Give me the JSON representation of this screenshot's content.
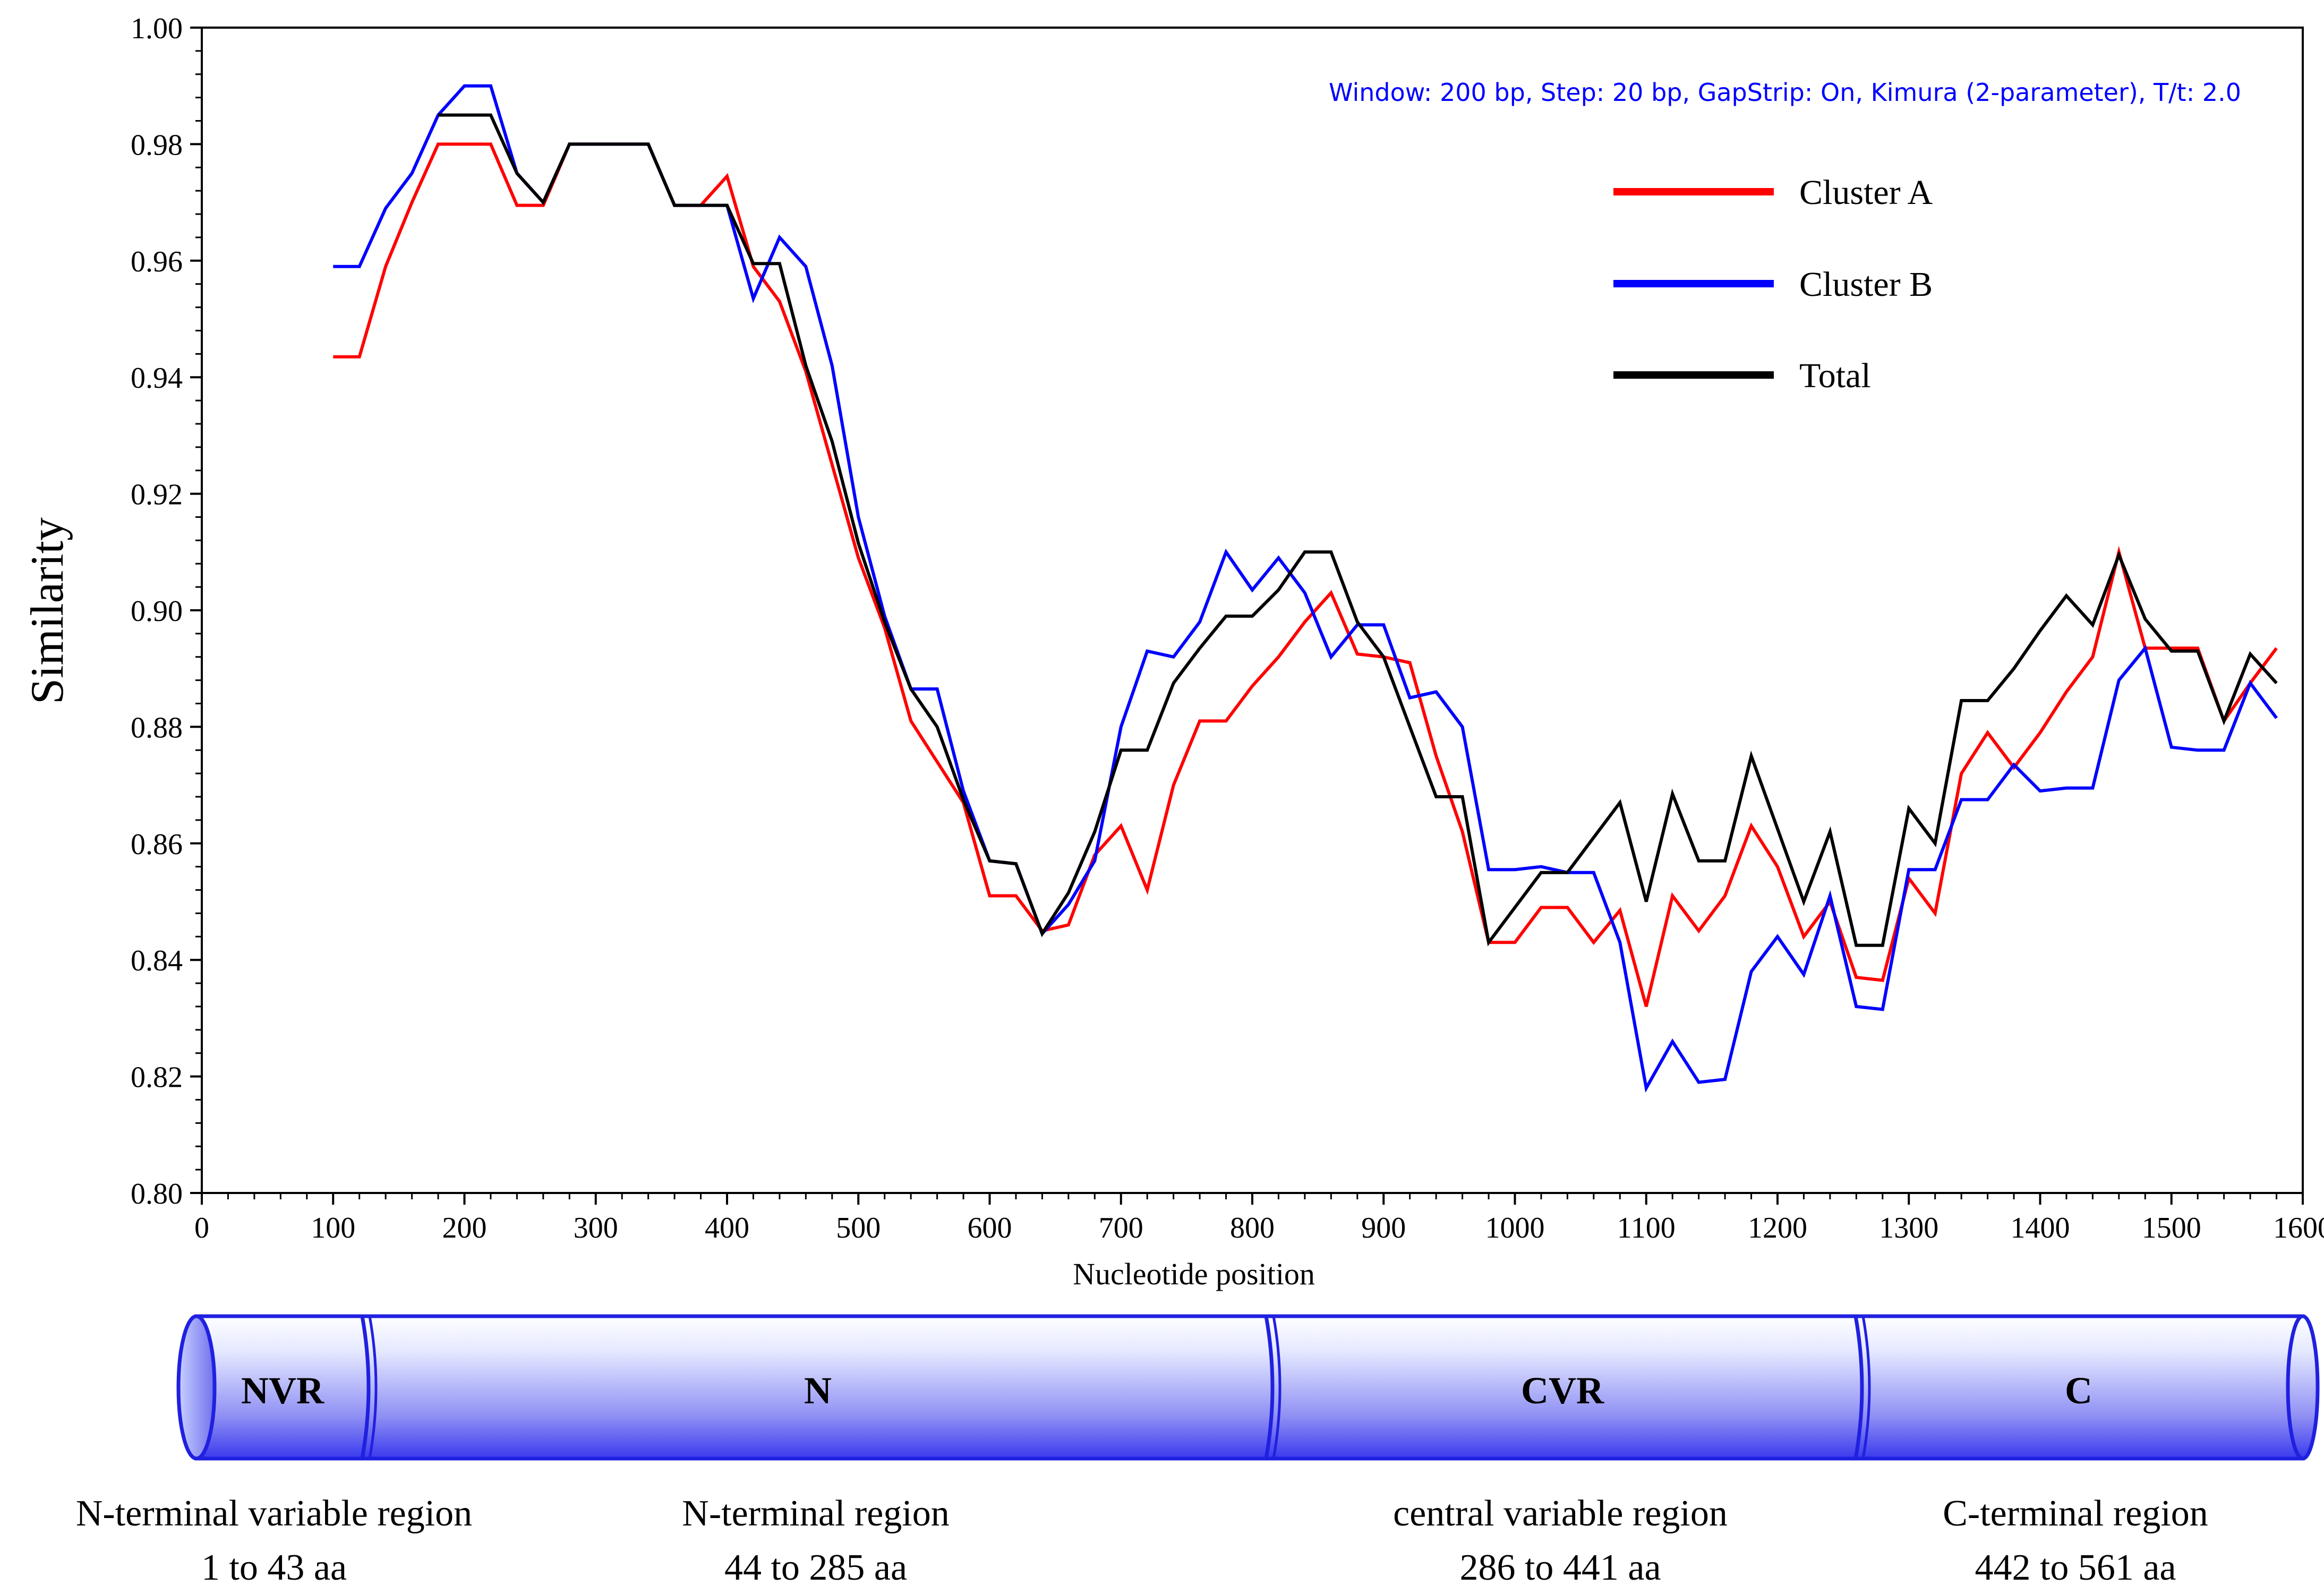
{
  "chart_data": {
    "type": "line",
    "annotation": "Window: 200 bp, Step: 20 bp, GapStrip: On, Kimura (2-parameter), T/t: 2.0",
    "xlabel": "Nucleotide position",
    "ylabel": "Similarity",
    "xlim": [
      0,
      1600
    ],
    "ylim": [
      0.8,
      1.0
    ],
    "x_ticks": [
      0,
      100,
      200,
      300,
      400,
      500,
      600,
      700,
      800,
      900,
      1000,
      1100,
      1200,
      1300,
      1400,
      1500,
      1600
    ],
    "y_ticks": [
      "0.80",
      "0.82",
      "0.84",
      "0.86",
      "0.88",
      "0.90",
      "0.92",
      "0.94",
      "0.96",
      "0.98",
      "1.00"
    ],
    "legend_position": "top-right",
    "series": [
      {
        "name": "Cluster A",
        "color": "#ff0000",
        "points": [
          [
            100,
            0.9435
          ],
          [
            120,
            0.9435
          ],
          [
            140,
            0.959
          ],
          [
            160,
            0.97
          ],
          [
            180,
            0.98
          ],
          [
            200,
            0.98
          ],
          [
            220,
            0.98
          ],
          [
            240,
            0.9695
          ],
          [
            260,
            0.9695
          ],
          [
            280,
            0.98
          ],
          [
            300,
            0.98
          ],
          [
            320,
            0.98
          ],
          [
            340,
            0.98
          ],
          [
            360,
            0.9695
          ],
          [
            380,
            0.9695
          ],
          [
            400,
            0.9745
          ],
          [
            420,
            0.959
          ],
          [
            440,
            0.953
          ],
          [
            460,
            0.941
          ],
          [
            480,
            0.925
          ],
          [
            500,
            0.909
          ],
          [
            520,
            0.897
          ],
          [
            540,
            0.881
          ],
          [
            560,
            0.874
          ],
          [
            580,
            0.867
          ],
          [
            600,
            0.851
          ],
          [
            620,
            0.851
          ],
          [
            640,
            0.845
          ],
          [
            660,
            0.846
          ],
          [
            680,
            0.858
          ],
          [
            700,
            0.863
          ],
          [
            720,
            0.852
          ],
          [
            740,
            0.87
          ],
          [
            760,
            0.881
          ],
          [
            780,
            0.881
          ],
          [
            800,
            0.887
          ],
          [
            820,
            0.892
          ],
          [
            840,
            0.898
          ],
          [
            860,
            0.903
          ],
          [
            880,
            0.8925
          ],
          [
            900,
            0.892
          ],
          [
            920,
            0.891
          ],
          [
            940,
            0.875
          ],
          [
            960,
            0.862
          ],
          [
            980,
            0.843
          ],
          [
            1000,
            0.843
          ],
          [
            1020,
            0.849
          ],
          [
            1040,
            0.849
          ],
          [
            1060,
            0.843
          ],
          [
            1080,
            0.8485
          ],
          [
            1100,
            0.832
          ],
          [
            1120,
            0.851
          ],
          [
            1140,
            0.845
          ],
          [
            1160,
            0.851
          ],
          [
            1180,
            0.863
          ],
          [
            1200,
            0.856
          ],
          [
            1220,
            0.844
          ],
          [
            1240,
            0.85
          ],
          [
            1260,
            0.837
          ],
          [
            1280,
            0.8365
          ],
          [
            1300,
            0.854
          ],
          [
            1320,
            0.848
          ],
          [
            1340,
            0.872
          ],
          [
            1360,
            0.879
          ],
          [
            1380,
            0.873
          ],
          [
            1400,
            0.879
          ],
          [
            1420,
            0.886
          ],
          [
            1440,
            0.892
          ],
          [
            1460,
            0.91
          ],
          [
            1480,
            0.8935
          ],
          [
            1500,
            0.8935
          ],
          [
            1520,
            0.8935
          ],
          [
            1540,
            0.881
          ],
          [
            1560,
            0.8875
          ],
          [
            1580,
            0.8935
          ]
        ]
      },
      {
        "name": "Cluster B",
        "color": "#0000ff",
        "points": [
          [
            100,
            0.959
          ],
          [
            120,
            0.959
          ],
          [
            140,
            0.969
          ],
          [
            160,
            0.975
          ],
          [
            180,
            0.985
          ],
          [
            200,
            0.99
          ],
          [
            220,
            0.99
          ],
          [
            240,
            0.975
          ],
          [
            260,
            0.97
          ],
          [
            280,
            0.98
          ],
          [
            300,
            0.98
          ],
          [
            320,
            0.98
          ],
          [
            340,
            0.98
          ],
          [
            360,
            0.9695
          ],
          [
            380,
            0.9695
          ],
          [
            400,
            0.9695
          ],
          [
            420,
            0.9535
          ],
          [
            440,
            0.964
          ],
          [
            460,
            0.959
          ],
          [
            480,
            0.942
          ],
          [
            500,
            0.916
          ],
          [
            520,
            0.899
          ],
          [
            540,
            0.8865
          ],
          [
            560,
            0.8865
          ],
          [
            580,
            0.869
          ],
          [
            600,
            0.857
          ],
          [
            620,
            0.8565
          ],
          [
            640,
            0.8445
          ],
          [
            660,
            0.8495
          ],
          [
            680,
            0.857
          ],
          [
            700,
            0.88
          ],
          [
            720,
            0.893
          ],
          [
            740,
            0.892
          ],
          [
            760,
            0.898
          ],
          [
            780,
            0.91
          ],
          [
            800,
            0.9035
          ],
          [
            820,
            0.909
          ],
          [
            840,
            0.903
          ],
          [
            860,
            0.892
          ],
          [
            880,
            0.8975
          ],
          [
            900,
            0.8975
          ],
          [
            920,
            0.885
          ],
          [
            940,
            0.886
          ],
          [
            960,
            0.88
          ],
          [
            980,
            0.8555
          ],
          [
            1000,
            0.8555
          ],
          [
            1020,
            0.856
          ],
          [
            1040,
            0.855
          ],
          [
            1060,
            0.855
          ],
          [
            1080,
            0.843
          ],
          [
            1100,
            0.818
          ],
          [
            1120,
            0.826
          ],
          [
            1140,
            0.819
          ],
          [
            1160,
            0.8195
          ],
          [
            1180,
            0.838
          ],
          [
            1200,
            0.844
          ],
          [
            1220,
            0.8375
          ],
          [
            1240,
            0.851
          ],
          [
            1260,
            0.832
          ],
          [
            1280,
            0.8315
          ],
          [
            1300,
            0.8555
          ],
          [
            1320,
            0.8555
          ],
          [
            1340,
            0.8675
          ],
          [
            1360,
            0.8675
          ],
          [
            1380,
            0.8735
          ],
          [
            1400,
            0.869
          ],
          [
            1420,
            0.8695
          ],
          [
            1440,
            0.8695
          ],
          [
            1460,
            0.888
          ],
          [
            1480,
            0.8935
          ],
          [
            1500,
            0.8765
          ],
          [
            1520,
            0.876
          ],
          [
            1540,
            0.876
          ],
          [
            1560,
            0.8875
          ],
          [
            1580,
            0.8815
          ]
        ]
      },
      {
        "name": "Total",
        "color": "#000000",
        "points": [
          [
            180,
            0.985
          ],
          [
            200,
            0.985
          ],
          [
            220,
            0.985
          ],
          [
            240,
            0.975
          ],
          [
            260,
            0.97
          ],
          [
            280,
            0.98
          ],
          [
            300,
            0.98
          ],
          [
            320,
            0.98
          ],
          [
            340,
            0.98
          ],
          [
            360,
            0.9695
          ],
          [
            380,
            0.9695
          ],
          [
            400,
            0.9695
          ],
          [
            420,
            0.9595
          ],
          [
            440,
            0.9595
          ],
          [
            460,
            0.942
          ],
          [
            480,
            0.929
          ],
          [
            500,
            0.9115
          ],
          [
            520,
            0.898
          ],
          [
            540,
            0.8865
          ],
          [
            560,
            0.88
          ],
          [
            580,
            0.8675
          ],
          [
            600,
            0.857
          ],
          [
            620,
            0.8565
          ],
          [
            640,
            0.8445
          ],
          [
            660,
            0.8515
          ],
          [
            680,
            0.862
          ],
          [
            700,
            0.876
          ],
          [
            720,
            0.876
          ],
          [
            740,
            0.8875
          ],
          [
            760,
            0.8935
          ],
          [
            780,
            0.899
          ],
          [
            800,
            0.899
          ],
          [
            820,
            0.9035
          ],
          [
            840,
            0.91
          ],
          [
            860,
            0.91
          ],
          [
            880,
            0.898
          ],
          [
            900,
            0.892
          ],
          [
            920,
            0.88
          ],
          [
            940,
            0.868
          ],
          [
            960,
            0.868
          ],
          [
            980,
            0.843
          ],
          [
            1000,
            0.849
          ],
          [
            1020,
            0.855
          ],
          [
            1040,
            0.855
          ],
          [
            1060,
            0.861
          ],
          [
            1080,
            0.867
          ],
          [
            1100,
            0.85
          ],
          [
            1120,
            0.8685
          ],
          [
            1140,
            0.857
          ],
          [
            1160,
            0.857
          ],
          [
            1180,
            0.875
          ],
          [
            1200,
            0.8625
          ],
          [
            1220,
            0.85
          ],
          [
            1240,
            0.862
          ],
          [
            1260,
            0.8425
          ],
          [
            1280,
            0.8425
          ],
          [
            1300,
            0.866
          ],
          [
            1320,
            0.86
          ],
          [
            1340,
            0.8845
          ],
          [
            1360,
            0.8845
          ],
          [
            1380,
            0.89
          ],
          [
            1400,
            0.8965
          ],
          [
            1420,
            0.9025
          ],
          [
            1440,
            0.8975
          ],
          [
            1460,
            0.9095
          ],
          [
            1480,
            0.8985
          ],
          [
            1500,
            0.893
          ],
          [
            1520,
            0.893
          ],
          [
            1540,
            0.881
          ],
          [
            1560,
            0.8925
          ],
          [
            1580,
            0.8875
          ]
        ]
      }
    ]
  },
  "domains": [
    {
      "abbr": "NVR",
      "name": "N-terminal variable region",
      "range": "1 to 43 aa"
    },
    {
      "abbr": "N",
      "name": "N-terminal region",
      "range": "44 to 285 aa"
    },
    {
      "abbr": "CVR",
      "name": "central variable region",
      "range": "286 to 441 aa"
    },
    {
      "abbr": "C",
      "name": "C-terminal region",
      "range": "442 to 561 aa"
    }
  ],
  "colors": {
    "annotation": "#0000ff",
    "domain_bar": "#3a3af0",
    "domain_bar_light": "#e8ecff",
    "domain_outline": "#2020e0"
  }
}
